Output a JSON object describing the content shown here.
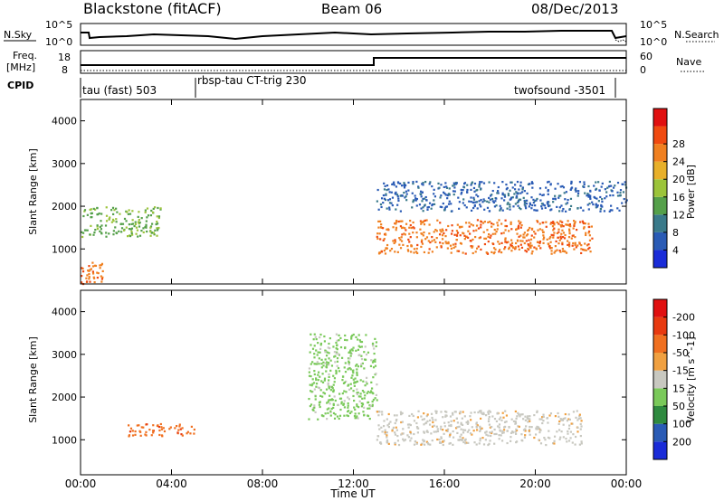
{
  "header": {
    "station": "Blackstone (fitACF)",
    "beam": "Beam 06",
    "date": "08/Dec/2013"
  },
  "noise_panel": {
    "left_label": "N.Sky",
    "right_label": "N.Search",
    "left_ticks": [
      "10^5",
      "10^0"
    ],
    "right_ticks": [
      "10^5",
      "10^0"
    ]
  },
  "freq_panel": {
    "left_label_line1": "Freq.",
    "left_label_line2": "[MHz]",
    "right_label": "Nave",
    "left_ticks": [
      "18",
      "8"
    ],
    "right_ticks": [
      "60",
      "0"
    ]
  },
  "cpid": {
    "label": "CPID",
    "segments": [
      "tau (fast) 503",
      "rbsp-tau CT-trig 230",
      "twofsound -3501"
    ]
  },
  "chart_data": [
    {
      "type": "heatmap",
      "title": "",
      "xlabel": "",
      "ylabel": "Slant Range [km]",
      "x_ticks": [
        "00:00",
        "04:00",
        "08:00",
        "12:00",
        "16:00",
        "20:00",
        "00:00"
      ],
      "y_ticks": [
        "1000",
        "2000",
        "3000",
        "4000"
      ],
      "xlim_hours": [
        0,
        24
      ],
      "ylim_km": [
        180,
        4500
      ],
      "colorbar": {
        "label": "Power [dB]",
        "ticks": [
          "4",
          "8",
          "12",
          "16",
          "20",
          "24",
          "28"
        ],
        "colors": [
          "#1a2cd8",
          "#2a5bb5",
          "#3a7a8a",
          "#55a04a",
          "#9cc43a",
          "#e8b02a",
          "#f08020",
          "#f04a10",
          "#e01010"
        ]
      },
      "features": [
        {
          "name": "near-range band",
          "hours": [
            0,
            1
          ],
          "range_km": [
            200,
            700
          ],
          "level_db": 26
        },
        {
          "name": "morning band",
          "hours": [
            0,
            3.5
          ],
          "range_km": [
            1300,
            2000
          ],
          "level_db": 14
        },
        {
          "name": "steady band",
          "hours": [
            13,
            22.5
          ],
          "range_km": [
            900,
            1700
          ],
          "level_db": 28
        },
        {
          "name": "upper echoes",
          "hours": [
            13,
            24
          ],
          "range_km": [
            1900,
            2600
          ],
          "level_db": 8
        }
      ]
    },
    {
      "type": "heatmap",
      "title": "",
      "xlabel": "Time UT",
      "ylabel": "Slant Range [km]",
      "x_ticks": [
        "00:00",
        "04:00",
        "08:00",
        "12:00",
        "16:00",
        "20:00",
        "00:00"
      ],
      "y_ticks": [
        "1000",
        "2000",
        "3000",
        "4000"
      ],
      "xlim_hours": [
        0,
        24
      ],
      "ylim_km": [
        180,
        4500
      ],
      "colorbar": {
        "label": "Velocity [m s^-1]",
        "ticks": [
          "200",
          "100",
          "50",
          "15",
          "-15",
          "-50",
          "-100",
          "-200"
        ],
        "colors": [
          "#1a2cd8",
          "#2a5bb5",
          "#2f8a3f",
          "#7ac95a",
          "#c8c8c0",
          "#f0a040",
          "#f07020",
          "#e83a10",
          "#e01010"
        ]
      },
      "features": [
        {
          "name": "ground scatter band",
          "hours": [
            13,
            22
          ],
          "range_km": [
            900,
            1700
          ],
          "velocity_ms": 0
        },
        {
          "name": "negative velocity band",
          "hours": [
            2,
            5
          ],
          "range_km": [
            1100,
            1400
          ],
          "velocity_ms": -60
        },
        {
          "name": "positive velocity feature",
          "hours": [
            10,
            13
          ],
          "range_km": [
            1500,
            3500
          ],
          "velocity_ms": 30
        }
      ]
    }
  ]
}
